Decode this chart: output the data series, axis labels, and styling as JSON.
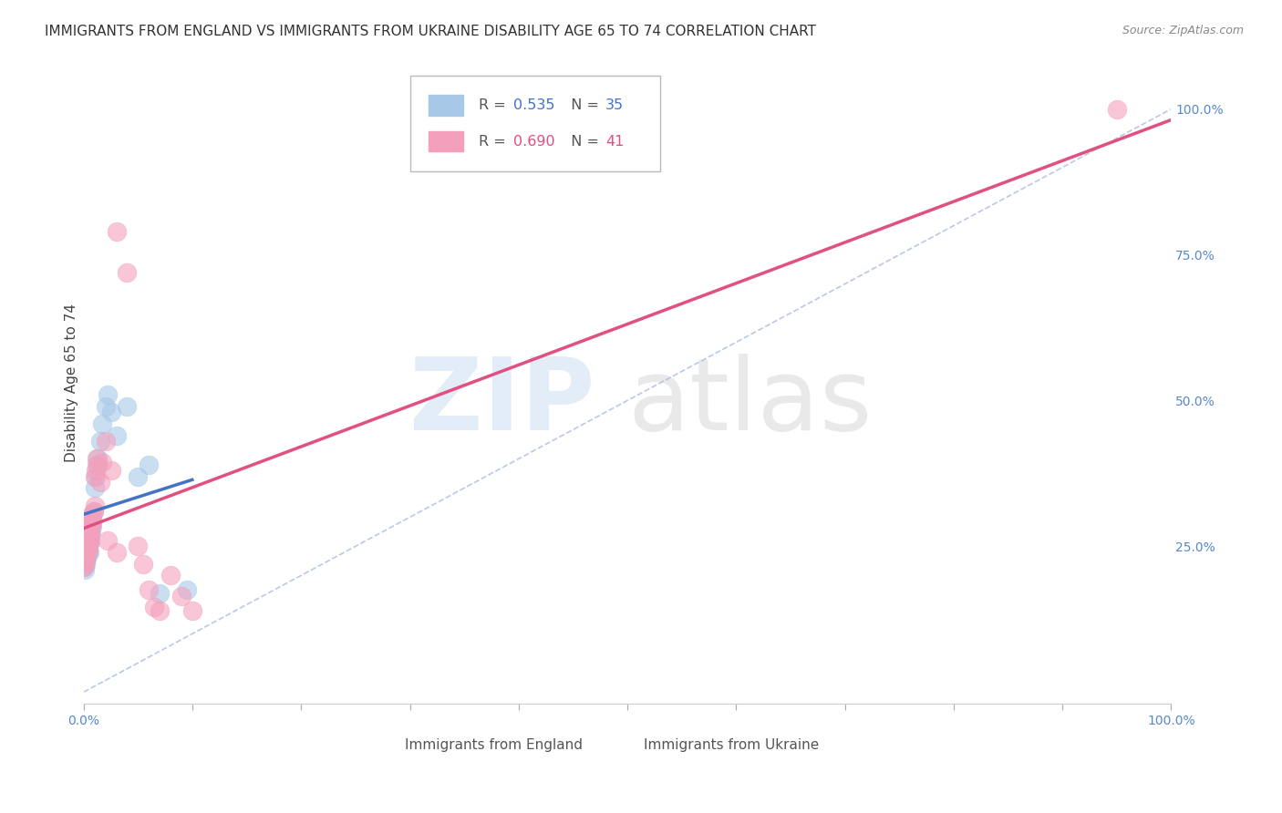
{
  "title": "IMMIGRANTS FROM ENGLAND VS IMMIGRANTS FROM UKRAINE DISABILITY AGE 65 TO 74 CORRELATION CHART",
  "source": "Source: ZipAtlas.com",
  "ylabel": "Disability Age 65 to 74",
  "england": {
    "name": "Immigrants from England",
    "color": "#a8c8e8",
    "line_color": "#4472c4",
    "R": "0.535",
    "N": "35",
    "x": [
      0.0,
      0.001,
      0.002,
      0.002,
      0.003,
      0.003,
      0.003,
      0.004,
      0.004,
      0.005,
      0.005,
      0.005,
      0.006,
      0.006,
      0.006,
      0.007,
      0.007,
      0.008,
      0.008,
      0.009,
      0.01,
      0.011,
      0.012,
      0.013,
      0.015,
      0.017,
      0.02,
      0.022,
      0.025,
      0.03,
      0.04,
      0.05,
      0.06,
      0.07,
      0.095
    ],
    "y": [
      0.215,
      0.21,
      0.22,
      0.225,
      0.23,
      0.235,
      0.245,
      0.24,
      0.25,
      0.255,
      0.24,
      0.265,
      0.26,
      0.27,
      0.28,
      0.275,
      0.29,
      0.285,
      0.3,
      0.31,
      0.35,
      0.37,
      0.39,
      0.4,
      0.43,
      0.46,
      0.49,
      0.51,
      0.48,
      0.44,
      0.49,
      0.37,
      0.39,
      0.17,
      0.175
    ]
  },
  "ukraine": {
    "name": "Immigrants from Ukraine",
    "color": "#f4a0bc",
    "line_color": "#e05080",
    "R": "0.690",
    "N": "41",
    "x": [
      0.0,
      0.001,
      0.001,
      0.002,
      0.002,
      0.003,
      0.003,
      0.004,
      0.004,
      0.005,
      0.005,
      0.005,
      0.006,
      0.006,
      0.007,
      0.007,
      0.008,
      0.008,
      0.009,
      0.01,
      0.01,
      0.011,
      0.012,
      0.013,
      0.015,
      0.017,
      0.02,
      0.022,
      0.025,
      0.03,
      0.03,
      0.04,
      0.05,
      0.055,
      0.06,
      0.065,
      0.07,
      0.08,
      0.09,
      0.1,
      0.95
    ],
    "y": [
      0.215,
      0.22,
      0.23,
      0.225,
      0.235,
      0.24,
      0.25,
      0.245,
      0.26,
      0.255,
      0.265,
      0.27,
      0.275,
      0.28,
      0.285,
      0.295,
      0.29,
      0.305,
      0.31,
      0.32,
      0.37,
      0.38,
      0.4,
      0.39,
      0.36,
      0.395,
      0.43,
      0.26,
      0.38,
      0.24,
      0.79,
      0.72,
      0.25,
      0.22,
      0.175,
      0.145,
      0.14,
      0.2,
      0.165,
      0.14,
      1.0
    ]
  },
  "xlim": [
    0.0,
    1.0
  ],
  "ylim": [
    -0.02,
    1.08
  ],
  "yticks": [
    0.0,
    0.25,
    0.5,
    0.75,
    1.0
  ],
  "ytick_labels": [
    "",
    "25.0%",
    "50.0%",
    "75.0%",
    "100.0%"
  ],
  "xtick_positions": [
    0.0,
    0.1,
    0.2,
    0.3,
    0.4,
    0.5,
    0.6,
    0.7,
    0.8,
    0.9,
    1.0
  ],
  "background_color": "#ffffff",
  "grid_color": "#dddddd",
  "title_fontsize": 11,
  "axis_label_fontsize": 11,
  "tick_fontsize": 10,
  "legend_R1_color": "#4472c4",
  "legend_N1_color": "#4472c4",
  "legend_R2_color": "#e05080",
  "legend_N2_color": "#e05080"
}
